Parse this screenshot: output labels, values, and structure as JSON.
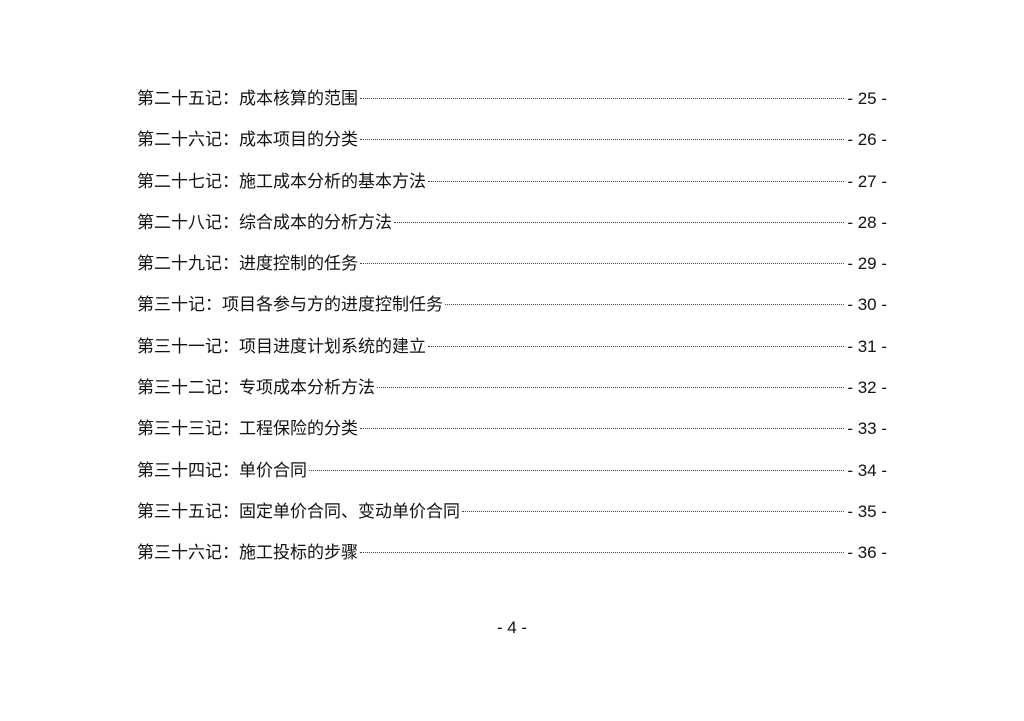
{
  "toc": [
    {
      "title": "第二十五记：成本核算的范围",
      "page": "- 25 -"
    },
    {
      "title": "第二十六记：成本项目的分类",
      "page": "- 26 -"
    },
    {
      "title": "第二十七记：施工成本分析的基本方法",
      "page": "- 27 -"
    },
    {
      "title": "第二十八记：综合成本的分析方法",
      "page": "- 28 -"
    },
    {
      "title": "第二十九记：进度控制的任务",
      "page": "- 29 -"
    },
    {
      "title": "第三十记：项目各参与方的进度控制任务",
      "page": "- 30 -"
    },
    {
      "title": "第三十一记：项目进度计划系统的建立",
      "page": "- 31 -"
    },
    {
      "title": "第三十二记：专项成本分析方法",
      "page": "- 32 -"
    },
    {
      "title": "第三十三记：工程保险的分类",
      "page": "- 33 -"
    },
    {
      "title": "第三十四记：单价合同",
      "page": "- 34 -"
    },
    {
      "title": "第三十五记：固定单价合同、变动单价合同",
      "page": "- 35 -"
    },
    {
      "title": "第三十六记：施工投标的步骤",
      "page": "- 36 -"
    }
  ],
  "footer": {
    "page_number": "- 4 -"
  }
}
